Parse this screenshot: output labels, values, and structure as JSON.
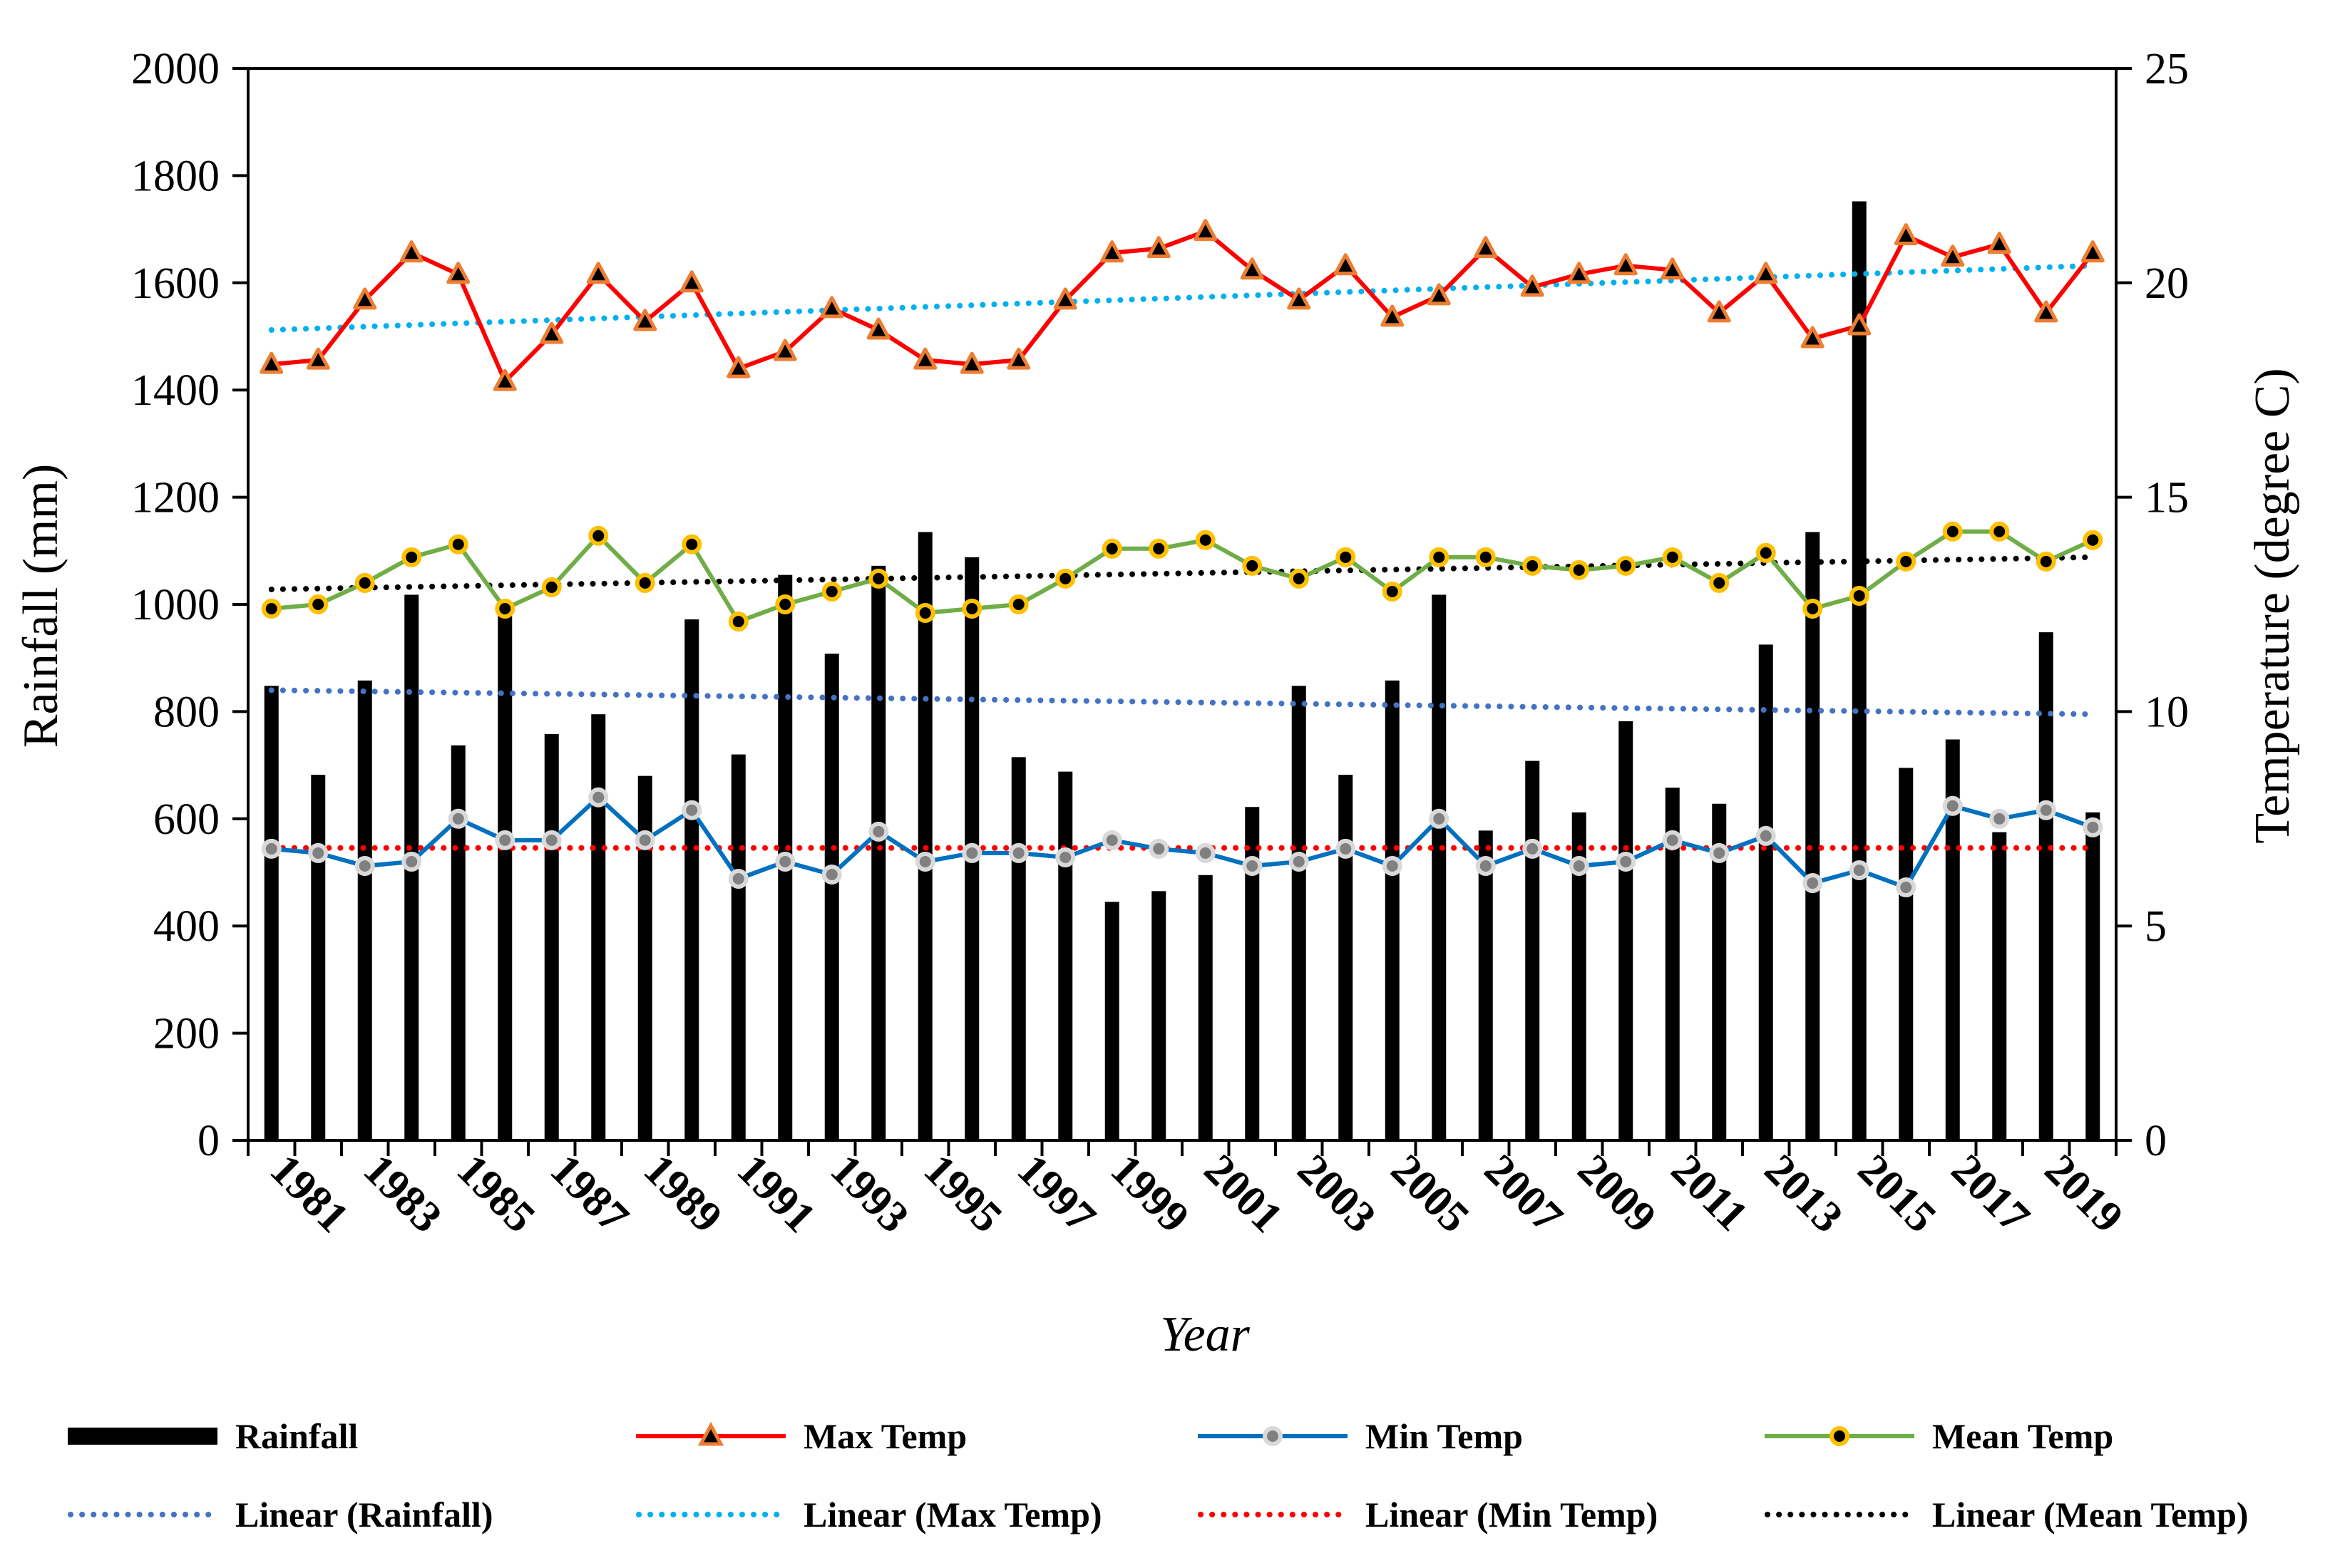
{
  "chart_data": {
    "type": "bar+line",
    "xlabel": "Year",
    "ylabel_left": "Rainfall (mm)",
    "ylabel_right": "Temperature (degree C)",
    "ylim_left": [
      0,
      2000
    ],
    "ylim_right": [
      0,
      25
    ],
    "yticks_left": [
      "0",
      "200",
      "400",
      "600",
      "800",
      "1000",
      "1200",
      "1400",
      "1600",
      "1800",
      "2000"
    ],
    "yticks_right": [
      "0",
      "5",
      "10",
      "15",
      "20",
      "25"
    ],
    "years": [
      1981,
      1982,
      1983,
      1984,
      1985,
      1986,
      1987,
      1988,
      1989,
      1990,
      1991,
      1992,
      1993,
      1994,
      1995,
      1996,
      1997,
      1998,
      1999,
      2000,
      2001,
      2002,
      2003,
      2004,
      2005,
      2006,
      2007,
      2008,
      2009,
      2010,
      2011,
      2012,
      2013,
      2014,
      2015,
      2016,
      2017,
      2018,
      2019,
      2020
    ],
    "xtick_labels": [
      "1981",
      "1983",
      "1985",
      "1987",
      "1989",
      "1991",
      "1993",
      "1995",
      "1997",
      "1999",
      "2001",
      "2003",
      "2005",
      "2007",
      "2009",
      "2011",
      "2013",
      "2015",
      "2017",
      "2019"
    ],
    "rainfall": {
      "name": "Rainfall",
      "axis": "left",
      "color": "#000000",
      "values": [
        848,
        682,
        858,
        1018,
        737,
        998,
        758,
        795,
        680,
        972,
        720,
        1055,
        908,
        1072,
        1135,
        1088,
        715,
        688,
        445,
        465,
        495,
        622,
        848,
        682,
        858,
        1018,
        578,
        708,
        612,
        782,
        658,
        628,
        925,
        1135,
        1752,
        695,
        748,
        575,
        948,
        612
      ]
    },
    "series": [
      {
        "name": "Max Temp",
        "axis": "right",
        "line_color": "#ff0000",
        "marker": "triangle",
        "marker_fill": "#000000",
        "marker_edge": "#ed7d31",
        "values": [
          18.1,
          18.2,
          19.6,
          20.7,
          20.2,
          17.7,
          18.8,
          20.2,
          19.1,
          20.0,
          18.0,
          18.4,
          19.4,
          18.9,
          18.2,
          18.1,
          18.2,
          19.6,
          20.7,
          20.8,
          21.2,
          20.3,
          19.6,
          20.4,
          19.2,
          19.7,
          20.8,
          19.9,
          20.2,
          20.4,
          20.3,
          19.3,
          20.2,
          18.7,
          19.0,
          21.1,
          20.6,
          20.9,
          19.3,
          20.7
        ]
      },
      {
        "name": "Min Temp",
        "axis": "right",
        "line_color": "#0070c0",
        "marker": "circle",
        "marker_fill": "#808080",
        "marker_edge": "#d9d9d9",
        "values": [
          6.8,
          6.7,
          6.4,
          6.5,
          7.5,
          7.0,
          7.0,
          8.0,
          7.0,
          7.7,
          6.1,
          6.5,
          6.2,
          7.2,
          6.5,
          6.7,
          6.7,
          6.6,
          7.0,
          6.8,
          6.7,
          6.4,
          6.5,
          6.8,
          6.4,
          7.5,
          6.4,
          6.8,
          6.4,
          6.5,
          7.0,
          6.7,
          7.1,
          6.0,
          6.3,
          5.9,
          7.8,
          7.5,
          7.7,
          7.3
        ]
      },
      {
        "name": "Mean Temp",
        "axis": "right",
        "line_color": "#70ad47",
        "marker": "circle",
        "marker_fill": "#000000",
        "marker_edge": "#ffc000",
        "values": [
          12.4,
          12.5,
          13.0,
          13.6,
          13.9,
          12.4,
          12.9,
          14.1,
          13.0,
          13.9,
          12.1,
          12.5,
          12.8,
          13.1,
          12.3,
          12.4,
          12.5,
          13.1,
          13.8,
          13.8,
          14.0,
          13.4,
          13.1,
          13.6,
          12.8,
          13.6,
          13.6,
          13.4,
          13.3,
          13.4,
          13.6,
          13.0,
          13.7,
          12.4,
          12.7,
          13.5,
          14.2,
          14.2,
          13.5,
          14.0
        ]
      }
    ],
    "trendlines": [
      {
        "name": "Linear (Rainfall)",
        "axis": "left",
        "color": "#4472c4",
        "start": 840,
        "end": 795
      },
      {
        "name": "Linear (Max Temp)",
        "axis": "right",
        "color": "#00b0f0",
        "start": 18.9,
        "end": 20.4
      },
      {
        "name": "Linear (Min Temp)",
        "axis": "right",
        "color": "#ff0000",
        "start": 6.82,
        "end": 6.82
      },
      {
        "name": "Linear (Mean Temp)",
        "axis": "right",
        "color": "#000000",
        "start": 12.85,
        "end": 13.6
      }
    ],
    "legend": {
      "position": "bottom",
      "rows": [
        [
          "Rainfall",
          "Max Temp",
          "Min Temp",
          "Mean Temp"
        ],
        [
          "Linear (Rainfall)",
          "Linear (Max Temp)",
          "Linear (Min Temp)",
          "Linear (Mean Temp)"
        ]
      ]
    }
  }
}
